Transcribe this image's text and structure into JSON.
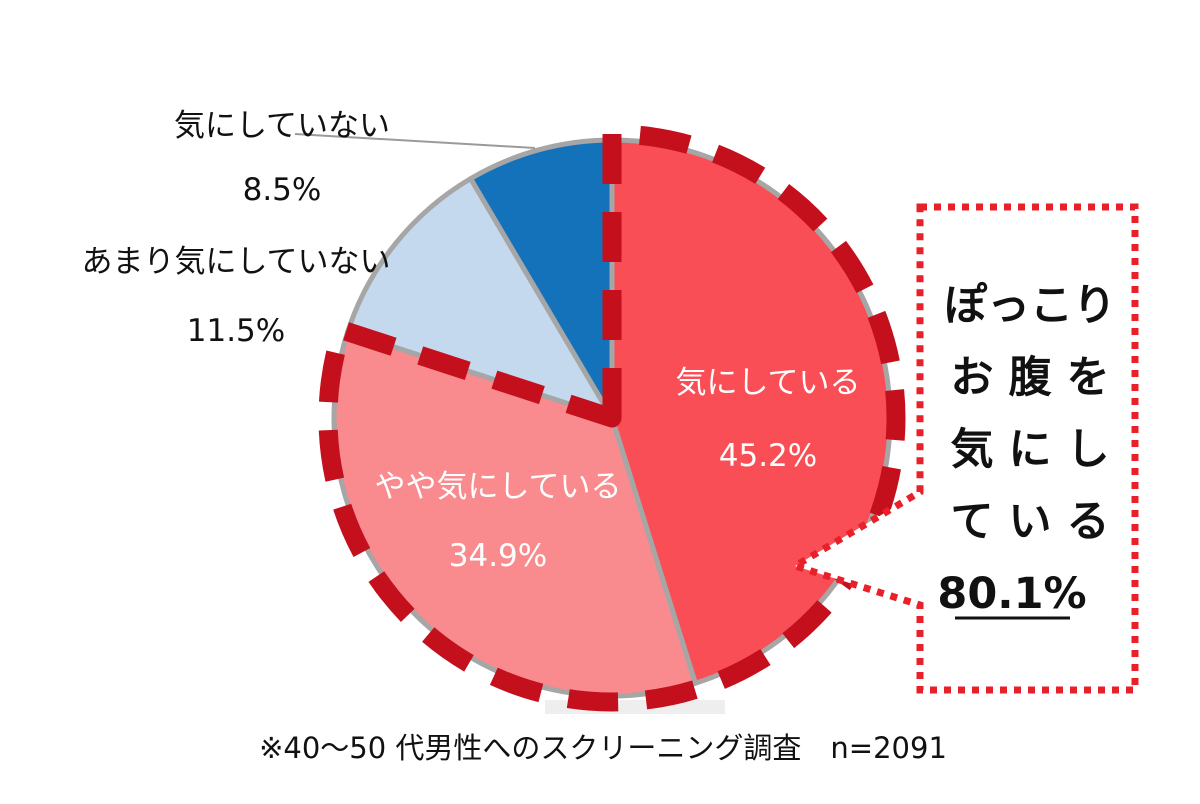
{
  "chart_data": {
    "type": "pie",
    "categories": [
      "気にしている",
      "やや気にしている",
      "あまり気にしていない",
      "気にしていない"
    ],
    "values": [
      45.2,
      34.9,
      11.5,
      8.5
    ],
    "value_labels": [
      "45.2%",
      "34.9%",
      "11.5%",
      "8.5%"
    ],
    "colors": [
      "#f94e55",
      "#f98a8d",
      "#c5d9ee",
      "#1472bb"
    ],
    "callout": {
      "lines": [
        "ぽっこり",
        "お 腹 を",
        "気 に し",
        "て い る"
      ],
      "value": "80.1%"
    },
    "footnote": "※40～50 代男性へのスクリーニング調査　n=2091"
  }
}
